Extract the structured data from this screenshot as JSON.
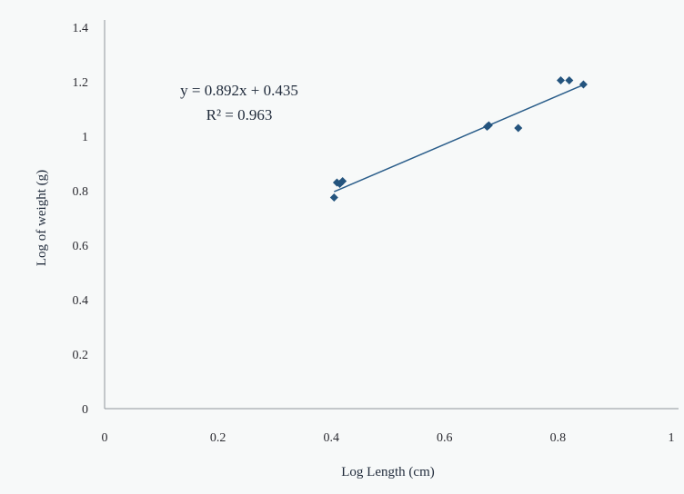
{
  "chart_data": {
    "type": "scatter",
    "title": "",
    "xlabel": "Log Length (cm)",
    "ylabel": "Log of weight (g)",
    "xlim": [
      0,
      1
    ],
    "ylim": [
      0,
      1.4
    ],
    "x_ticks": [
      "0",
      "0.2",
      "0.4",
      "0.6",
      "0.8",
      "1"
    ],
    "y_ticks": [
      "0",
      "0.2",
      "0.4",
      "0.6",
      "0.8",
      "1",
      "1.2",
      "1.4"
    ],
    "grid": false,
    "legend": "none",
    "marker_color": "#24547e",
    "line_color": "#2a5d8a",
    "label_color": "#2d6fa6",
    "series": [
      {
        "x": [
          0.405,
          0.41,
          0.415,
          0.42,
          0.675,
          0.678,
          0.73,
          0.805,
          0.82,
          0.845
        ],
        "y": [
          0.775,
          0.83,
          0.825,
          0.835,
          1.035,
          1.04,
          1.03,
          1.205,
          1.205,
          1.19
        ]
      }
    ],
    "trendline": {
      "type": "linear",
      "slope": 0.892,
      "intercept": 0.435,
      "x_range": [
        0.405,
        0.845
      ],
      "equation": "y = 0.892x + 0.435",
      "r_squared": "R² = 0.963"
    }
  }
}
